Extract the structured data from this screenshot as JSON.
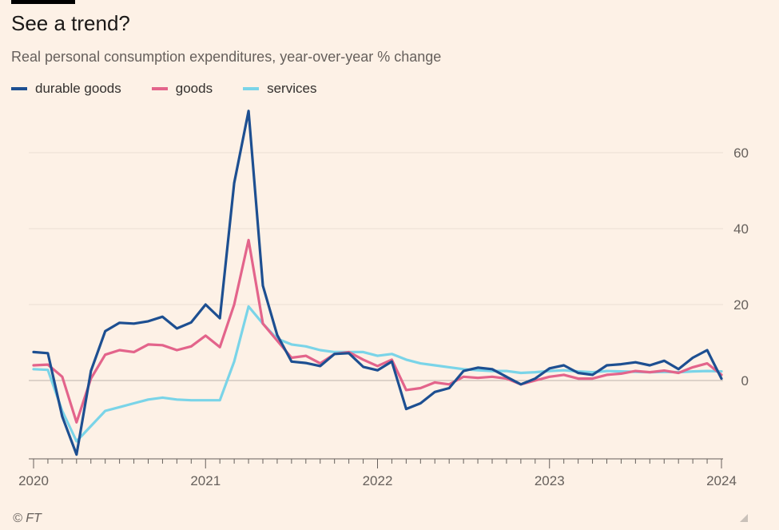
{
  "title": "See a trend?",
  "subtitle": "Real personal consumption expenditures, year-over-year % change",
  "footer": "© FT",
  "chart_data": {
    "type": "line",
    "x": [
      "2020-01",
      "2020-02",
      "2020-03",
      "2020-04",
      "2020-05",
      "2020-06",
      "2020-07",
      "2020-08",
      "2020-09",
      "2020-10",
      "2020-11",
      "2020-12",
      "2021-01",
      "2021-02",
      "2021-03",
      "2021-04",
      "2021-05",
      "2021-06",
      "2021-07",
      "2021-08",
      "2021-09",
      "2021-10",
      "2021-11",
      "2021-12",
      "2022-01",
      "2022-02",
      "2022-03",
      "2022-04",
      "2022-05",
      "2022-06",
      "2022-07",
      "2022-08",
      "2022-09",
      "2022-10",
      "2022-11",
      "2022-12",
      "2023-01",
      "2023-02",
      "2023-03",
      "2023-04",
      "2023-05",
      "2023-06",
      "2023-07",
      "2023-08",
      "2023-09",
      "2023-10",
      "2023-11",
      "2023-12",
      "2024-01"
    ],
    "x_ticks": [
      "2020",
      "2021",
      "2022",
      "2023",
      "2024"
    ],
    "y_ticks": [
      0,
      20,
      40,
      60
    ],
    "ylim": [
      -20,
      72
    ],
    "grid": true,
    "legend_position": "top-left",
    "series": [
      {
        "name": "durable goods",
        "color": "#1d4f91",
        "values": [
          7.5,
          7.2,
          -9.5,
          -19.5,
          2.5,
          13.0,
          15.2,
          15.0,
          15.6,
          16.8,
          13.7,
          15.3,
          20.0,
          16.4,
          52.0,
          71.0,
          25.0,
          12.0,
          5.0,
          4.6,
          3.8,
          7.0,
          7.2,
          3.6,
          2.7,
          5.0,
          -7.5,
          -6.0,
          -3.0,
          -2.0,
          2.5,
          3.4,
          3.0,
          1.0,
          -1.0,
          0.5,
          3.2,
          4.0,
          2.0,
          1.5,
          4.0,
          4.3,
          4.8,
          4.0,
          5.2,
          3.0,
          6.0,
          8.0,
          0.5
        ]
      },
      {
        "name": "goods",
        "color": "#e3648b",
        "values": [
          4.0,
          4.2,
          1.0,
          -11.0,
          0.5,
          6.8,
          8.0,
          7.5,
          9.5,
          9.3,
          8.0,
          9.0,
          11.8,
          8.8,
          20.0,
          37.0,
          15.0,
          10.5,
          6.0,
          6.5,
          4.5,
          7.0,
          7.5,
          5.5,
          3.8,
          5.5,
          -2.5,
          -2.0,
          -0.5,
          -1.0,
          1.0,
          0.7,
          1.0,
          0.5,
          -1.0,
          0.0,
          1.0,
          1.5,
          0.5,
          0.5,
          1.5,
          1.8,
          2.5,
          2.2,
          2.6,
          2.0,
          3.5,
          4.5,
          1.5
        ]
      },
      {
        "name": "services",
        "color": "#7ad4e8",
        "values": [
          3.0,
          2.8,
          -8.0,
          -16.0,
          -12.0,
          -8.0,
          -7.0,
          -6.0,
          -5.0,
          -4.5,
          -5.0,
          -5.2,
          -5.2,
          -5.2,
          5.0,
          19.5,
          15.0,
          11.0,
          9.5,
          9.0,
          8.0,
          7.5,
          7.5,
          7.5,
          6.5,
          7.0,
          5.5,
          4.5,
          4.0,
          3.5,
          3.0,
          2.7,
          2.5,
          2.5,
          2.0,
          2.2,
          2.5,
          2.7,
          2.4,
          2.2,
          2.5,
          2.4,
          2.3,
          2.2,
          2.3,
          2.2,
          2.4,
          2.5,
          2.4
        ]
      }
    ]
  }
}
